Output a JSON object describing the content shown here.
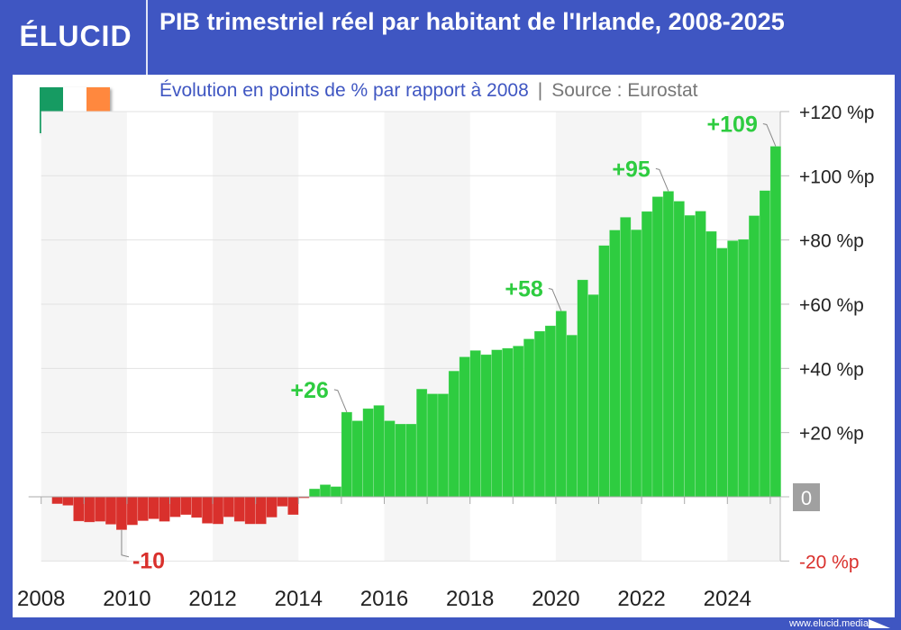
{
  "header": {
    "logo": "ÉLUCID",
    "title": "PIB trimestriel réel par habitant de l'Irlande, 2008-2025",
    "subtitle": "Évolution en points de % par rapport à 2008",
    "source": "Source : Eurostat",
    "separator": "|"
  },
  "flag": {
    "country": "Irlande",
    "colors": [
      "#169b62",
      "#ffffff",
      "#ff883e"
    ]
  },
  "footer": {
    "url": "www.elucid.media"
  },
  "colors": {
    "brand": "#3f56c2",
    "positive": "#2ecc40",
    "negative": "#d9302c",
    "zero_box": "#a0a0a0"
  },
  "chart_data": {
    "type": "bar",
    "title": "PIB trimestriel réel par habitant de l'Irlande, 2008-2025",
    "subtitle": "Évolution en points de % par rapport à 2008",
    "x_start": "2008-Q1",
    "x_end": "2025-Q1",
    "frequency": "quarterly",
    "x_tick_labels": [
      "2008",
      "2010",
      "2012",
      "2014",
      "2016",
      "2018",
      "2020",
      "2022",
      "2024"
    ],
    "y_tick_labels": [
      "+120 %p",
      "+100 %p",
      "+80 %p",
      "+60 %p",
      "+40 %p",
      "+20 %p",
      "0",
      "-20 %p"
    ],
    "y_ticks": [
      120,
      100,
      80,
      60,
      40,
      20,
      0,
      -20
    ],
    "ylim": [
      -20,
      120
    ],
    "y_axis_position": "right",
    "grid": true,
    "values": [
      0,
      -2.2,
      -2.7,
      -7.6,
      -7.9,
      -7.7,
      -8.6,
      -10.3,
      -8.8,
      -7.5,
      -6.9,
      -7.7,
      -6.3,
      -5.6,
      -6.5,
      -8.3,
      -8.5,
      -6.3,
      -7.7,
      -8.5,
      -8.5,
      -6.4,
      -3.0,
      -5.6,
      -0.4,
      2.5,
      3.8,
      3.2,
      26.4,
      23.7,
      27.5,
      28.5,
      23.7,
      22.7,
      22.7,
      33.6,
      32.1,
      32.1,
      39.2,
      43.6,
      45.6,
      44.3,
      45.8,
      46.3,
      47.0,
      49.2,
      51.6,
      53.3,
      57.9,
      50.4,
      67.6,
      63.0,
      78.3,
      83.1,
      87.1,
      83.2,
      88.9,
      93.5,
      95.2,
      92.1,
      87.7,
      89.0,
      82.7,
      77.5,
      79.8,
      80.2,
      87.6,
      95.4,
      109.2
    ],
    "annotations": [
      {
        "index": 7,
        "label": "-10"
      },
      {
        "index": 28,
        "label": "+26"
      },
      {
        "index": 48,
        "label": "+58"
      },
      {
        "index": 58,
        "label": "+95"
      },
      {
        "index": 68,
        "label": "+109"
      }
    ]
  }
}
